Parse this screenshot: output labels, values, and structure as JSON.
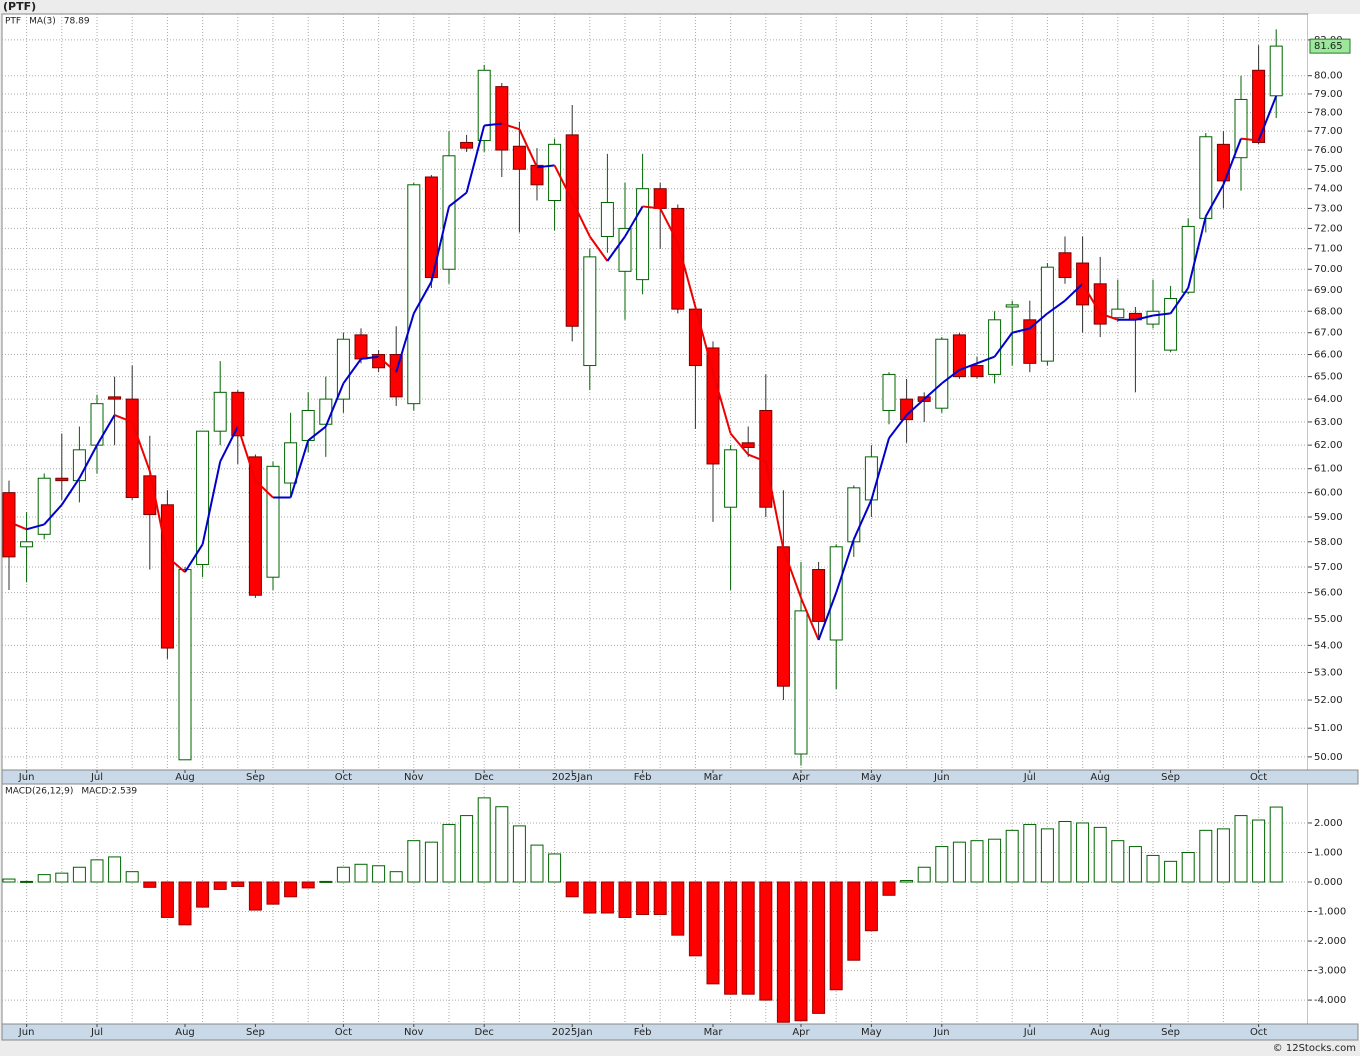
{
  "header": {
    "title": "(PTF)"
  },
  "footer": "© 12Stocks.com",
  "chart_data": [
    {
      "type": "candlestick",
      "name": "PTF",
      "categories": [
        null,
        "Jun",
        null,
        null,
        null,
        "Jul",
        null,
        null,
        null,
        null,
        "Aug",
        null,
        null,
        null,
        "Sep",
        null,
        null,
        null,
        null,
        "Oct",
        null,
        null,
        null,
        "Nov",
        null,
        null,
        null,
        "Dec",
        null,
        null,
        null,
        null,
        "2025Jan",
        null,
        null,
        null,
        "Feb",
        null,
        null,
        null,
        "Mar",
        null,
        null,
        null,
        null,
        "Apr",
        null,
        null,
        null,
        "May",
        null,
        null,
        null,
        "Jun",
        null,
        null,
        null,
        null,
        "Jul",
        null,
        null,
        null,
        "Aug",
        null,
        null,
        null,
        "Sep",
        null,
        null,
        null,
        null,
        "Oct",
        null
      ],
      "open": [
        60.0,
        57.8,
        58.3,
        60.6,
        60.5,
        62.0,
        64.1,
        64.0,
        60.7,
        59.5,
        49.9,
        57.1,
        62.6,
        64.3,
        61.5,
        56.6,
        60.4,
        62.2,
        62.9,
        64.0,
        66.9,
        66.0,
        66.0,
        63.8,
        74.6,
        70.0,
        76.4,
        76.5,
        79.4,
        76.2,
        75.2,
        73.4,
        76.8,
        65.5,
        71.6,
        69.9,
        69.5,
        74.0,
        73.0,
        68.1,
        66.3,
        59.4,
        62.1,
        63.5,
        57.8,
        50.1,
        56.9,
        54.2,
        58.0,
        59.7,
        63.5,
        64.0,
        64.1,
        63.6,
        66.9,
        65.5,
        65.1,
        68.2,
        67.6,
        65.7,
        70.8,
        70.3,
        69.3,
        67.7,
        67.9,
        67.4,
        66.2,
        68.9,
        72.5,
        76.3,
        75.6,
        80.3,
        78.9
      ],
      "high": [
        60.5,
        59.2,
        60.8,
        62.5,
        62.8,
        64.2,
        65.0,
        65.5,
        62.4,
        60.1,
        57.0,
        62.6,
        65.7,
        64.4,
        61.6,
        61.3,
        63.4,
        64.3,
        65.0,
        67.0,
        67.2,
        66.2,
        67.3,
        74.3,
        74.7,
        77.0,
        76.8,
        80.6,
        79.6,
        77.5,
        76.1,
        76.6,
        78.4,
        71.0,
        75.8,
        74.3,
        75.8,
        74.3,
        73.2,
        68.3,
        66.6,
        62.0,
        62.8,
        65.1,
        60.1,
        57.2,
        57.2,
        57.9,
        60.3,
        62.0,
        65.2,
        64.9,
        64.3,
        66.8,
        67.0,
        65.9,
        68.0,
        68.5,
        68.5,
        70.3,
        71.6,
        71.6,
        70.6,
        69.5,
        68.2,
        69.5,
        69.2,
        72.5,
        76.9,
        77.0,
        80.0,
        81.7,
        82.6
      ],
      "low": [
        56.1,
        56.4,
        58.1,
        59.7,
        59.6,
        60.8,
        62.0,
        59.7,
        56.9,
        53.5,
        49.9,
        56.6,
        62.0,
        61.2,
        55.8,
        56.1,
        59.8,
        61.7,
        61.5,
        63.4,
        65.6,
        65.2,
        63.7,
        63.5,
        69.1,
        69.3,
        75.9,
        75.9,
        74.6,
        71.8,
        73.4,
        71.9,
        66.6,
        64.4,
        70.8,
        67.6,
        68.8,
        71.0,
        67.9,
        62.7,
        58.8,
        56.1,
        61.5,
        59.0,
        52.0,
        49.7,
        54.3,
        52.4,
        57.4,
        59.0,
        62.9,
        62.1,
        63.0,
        63.4,
        64.9,
        64.9,
        64.7,
        65.5,
        65.2,
        65.5,
        69.3,
        67.0,
        66.8,
        67.5,
        64.3,
        67.2,
        66.1,
        68.8,
        71.8,
        73.0,
        73.9,
        76.3,
        77.7
      ],
      "close": [
        57.4,
        58.0,
        60.6,
        60.5,
        61.8,
        63.8,
        64.0,
        59.8,
        59.1,
        53.9,
        56.9,
        62.6,
        64.3,
        62.4,
        55.9,
        61.1,
        62.1,
        63.5,
        64.0,
        66.7,
        65.8,
        65.4,
        64.1,
        74.2,
        69.6,
        75.7,
        76.1,
        80.3,
        76.0,
        75.0,
        74.2,
        76.3,
        67.3,
        70.6,
        73.3,
        72.0,
        74.0,
        73.0,
        68.1,
        65.5,
        61.2,
        61.8,
        61.9,
        59.4,
        52.5,
        55.3,
        54.9,
        57.8,
        60.2,
        61.5,
        65.1,
        63.1,
        63.9,
        66.7,
        65.0,
        65.0,
        67.6,
        68.3,
        65.6,
        70.1,
        69.6,
        68.3,
        67.4,
        68.1,
        67.6,
        68.0,
        68.6,
        72.1,
        76.7,
        74.4,
        78.7,
        76.4,
        81.65
      ],
      "up_color": "#006400",
      "down_color": "#ff0000",
      "series": [
        {
          "name": "MA(3)",
          "up_color": "#0000cc",
          "down_color": "#ee0000",
          "values": [
            58.8,
            58.5,
            58.7,
            59.5,
            60.6,
            62.0,
            63.3,
            63.0,
            60.9,
            57.4,
            56.8,
            57.9,
            61.3,
            62.8,
            60.5,
            59.8,
            59.8,
            62.2,
            62.8,
            64.7,
            65.8,
            65.9,
            65.2,
            67.9,
            69.4,
            73.1,
            73.8,
            77.3,
            77.4,
            77.1,
            75.1,
            75.2,
            73.4,
            71.6,
            70.4,
            71.6,
            73.1,
            73.0,
            71.3,
            68.2,
            65.2,
            62.5,
            61.6,
            61.3,
            57.7,
            55.8,
            54.2,
            56.0,
            58.1,
            59.7,
            62.3,
            63.3,
            64.0,
            64.7,
            65.3,
            65.6,
            65.9,
            67.0,
            67.2,
            67.9,
            68.5,
            69.3,
            67.9,
            67.6,
            67.6,
            67.8,
            67.9,
            69.1,
            72.6,
            74.2,
            76.6,
            76.5,
            78.89
          ]
        }
      ],
      "ylim": [
        49.55,
        83.48
      ],
      "log": true,
      "grid": true,
      "yticks": [
        {
          "value": 50,
          "label": "50.00"
        },
        {
          "value": 51,
          "label": "51.00"
        },
        {
          "value": 52,
          "label": "52.00"
        },
        {
          "value": 53,
          "label": "53.00"
        },
        {
          "value": 54,
          "label": "54.00"
        },
        {
          "value": 55,
          "label": "55.00"
        },
        {
          "value": 56,
          "label": "56.00"
        },
        {
          "value": 57,
          "label": "57.00"
        },
        {
          "value": 58,
          "label": "58.00"
        },
        {
          "value": 59,
          "label": "59.00"
        },
        {
          "value": 60,
          "label": "60.00"
        },
        {
          "value": 61,
          "label": "61.00"
        },
        {
          "value": 62,
          "label": "62.00"
        },
        {
          "value": 63,
          "label": "63.00"
        },
        {
          "value": 64,
          "label": "64.00"
        },
        {
          "value": 65,
          "label": "65.00"
        },
        {
          "value": 66,
          "label": "66.00"
        },
        {
          "value": 67,
          "label": "67.00"
        },
        {
          "value": 68,
          "label": "68.00"
        },
        {
          "value": 69,
          "label": "69.00"
        },
        {
          "value": 70,
          "label": "70.00"
        },
        {
          "value": 71,
          "label": "71.00"
        },
        {
          "value": 72,
          "label": "72.00"
        },
        {
          "value": 73,
          "label": "73.00"
        },
        {
          "value": 74,
          "label": "74.00"
        },
        {
          "value": 75,
          "label": "75.00"
        },
        {
          "value": 76,
          "label": "76.00"
        },
        {
          "value": 77,
          "label": "77.00"
        },
        {
          "value": 78,
          "label": "78.00"
        },
        {
          "value": 79,
          "label": "79.00"
        },
        {
          "value": 80,
          "label": "80.00"
        },
        {
          "value": 82,
          "label": "82.00"
        }
      ]
    },
    {
      "type": "bar",
      "categories": [
        null,
        "Jun",
        null,
        null,
        null,
        "Jul",
        null,
        null,
        null,
        null,
        "Aug",
        null,
        null,
        null,
        "Sep",
        null,
        null,
        null,
        null,
        "Oct",
        null,
        null,
        null,
        "Nov",
        null,
        null,
        null,
        "Dec",
        null,
        null,
        null,
        null,
        "2025Jan",
        null,
        null,
        null,
        "Feb",
        null,
        null,
        null,
        "Mar",
        null,
        null,
        null,
        null,
        "Apr",
        null,
        null,
        null,
        "May",
        null,
        null,
        null,
        "Jun",
        null,
        null,
        null,
        null,
        "Jul",
        null,
        null,
        null,
        "Aug",
        null,
        null,
        null,
        "Sep",
        null,
        null,
        null,
        null,
        "Oct",
        null
      ],
      "up_color": "#006400",
      "down_color": "#ff0000",
      "series": [
        {
          "name": "MACD(26,12,9)",
          "values": [
            0.1,
            0.02,
            0.25,
            0.3,
            0.5,
            0.75,
            0.85,
            0.35,
            -0.18,
            -1.2,
            -1.45,
            -0.85,
            -0.25,
            -0.15,
            -0.95,
            -0.75,
            -0.5,
            -0.2,
            0.02,
            0.5,
            0.6,
            0.55,
            0.35,
            1.4,
            1.35,
            1.95,
            2.25,
            2.85,
            2.55,
            1.9,
            1.25,
            0.95,
            -0.5,
            -1.05,
            -1.05,
            -1.2,
            -1.1,
            -1.1,
            -1.8,
            -2.5,
            -3.45,
            -3.8,
            -3.8,
            -4.0,
            -4.75,
            -4.7,
            -4.45,
            -3.65,
            -2.65,
            -1.65,
            -0.45,
            0.05,
            0.5,
            1.2,
            1.35,
            1.4,
            1.45,
            1.75,
            1.95,
            1.8,
            2.05,
            2.0,
            1.85,
            1.4,
            1.2,
            0.9,
            0.7,
            1.0,
            1.75,
            1.8,
            2.25,
            2.1,
            2.539
          ],
          "value_labels": [
            null,
            null,
            null,
            null,
            null,
            null,
            null,
            null,
            null,
            null,
            null,
            null,
            null,
            null,
            null,
            null,
            null,
            null,
            null,
            null,
            null,
            null,
            null,
            null,
            null,
            null,
            null,
            null,
            null,
            null,
            null,
            null,
            null,
            null,
            null,
            null,
            null,
            null,
            null,
            null,
            null,
            null,
            null,
            null,
            null,
            null,
            null,
            null,
            null,
            null,
            null,
            null,
            null,
            null,
            null,
            null,
            null,
            null,
            null,
            null,
            null,
            null,
            null,
            null,
            null,
            null,
            null,
            null,
            null,
            null,
            null,
            null,
            "MACD:2.539"
          ]
        }
      ],
      "ylim": [
        -4.81,
        3.32
      ],
      "grid": true,
      "yticks": [
        {
          "value": -4,
          "label": "-4.000"
        },
        {
          "value": -3,
          "label": "-3.000"
        },
        {
          "value": -2,
          "label": "-2.000"
        },
        {
          "value": -1,
          "label": "-1.000"
        },
        {
          "value": 0,
          "label": "0.000"
        },
        {
          "value": 1,
          "label": "1.000"
        },
        {
          "value": 2,
          "label": "2.000"
        }
      ]
    }
  ]
}
